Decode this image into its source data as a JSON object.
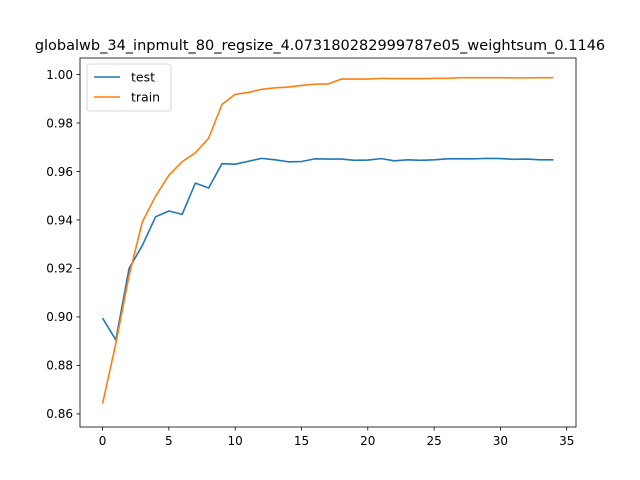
{
  "chart_data": {
    "type": "line",
    "title": "globalwb_34_inpmult_80_regsize_4.073180282999787e05_weightsum_0.1146",
    "xlabel": "",
    "ylabel": "",
    "xlim": [
      -1.7,
      35.7
    ],
    "ylim": [
      0.8546,
      1.0068
    ],
    "xticks": [
      0,
      5,
      10,
      15,
      20,
      25,
      30,
      35
    ],
    "yticks": [
      0.86,
      0.88,
      0.9,
      0.92,
      0.94,
      0.96,
      0.98,
      1.0
    ],
    "ytick_labels": [
      "0.86",
      "0.88",
      "0.90",
      "0.92",
      "0.94",
      "0.96",
      "0.98",
      "1.00"
    ],
    "grid": false,
    "legend": "top-left",
    "x": [
      0,
      1,
      2,
      3,
      4,
      5,
      6,
      7,
      8,
      9,
      10,
      11,
      12,
      13,
      14,
      15,
      16,
      17,
      18,
      19,
      20,
      21,
      22,
      23,
      24,
      25,
      26,
      27,
      28,
      29,
      30,
      31,
      32,
      33,
      34
    ],
    "series": [
      {
        "name": "test",
        "color": "#1f77b4",
        "values": [
          0.8995,
          0.8905,
          0.92,
          0.9295,
          0.9413,
          0.9437,
          0.9423,
          0.9552,
          0.9532,
          0.9632,
          0.963,
          0.9642,
          0.9654,
          0.9648,
          0.964,
          0.9641,
          0.9652,
          0.9651,
          0.9651,
          0.9646,
          0.9647,
          0.9653,
          0.9644,
          0.9648,
          0.9646,
          0.9648,
          0.9652,
          0.9652,
          0.9652,
          0.9654,
          0.9653,
          0.965,
          0.9651,
          0.9648,
          0.9648
        ]
      },
      {
        "name": "train",
        "color": "#ff7f0e",
        "values": [
          0.8642,
          0.889,
          0.917,
          0.9392,
          0.9498,
          0.9584,
          0.964,
          0.9677,
          0.9737,
          0.9876,
          0.9918,
          0.9926,
          0.9939,
          0.9945,
          0.9948,
          0.9955,
          0.996,
          0.9961,
          0.9981,
          0.9981,
          0.9981,
          0.9984,
          0.9983,
          0.9983,
          0.9983,
          0.9984,
          0.9984,
          0.9987,
          0.9987,
          0.9987,
          0.9987,
          0.9986,
          0.9986,
          0.9987,
          0.9987
        ]
      }
    ]
  }
}
